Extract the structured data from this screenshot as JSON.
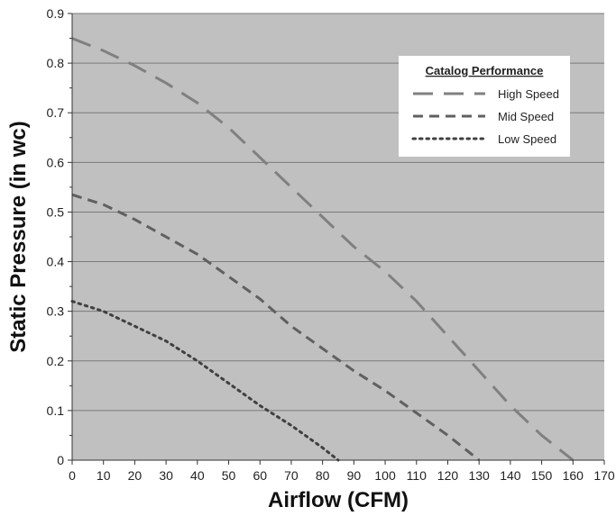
{
  "chart_data": {
    "type": "line",
    "title": "",
    "xlabel": "Airflow (CFM)",
    "ylabel": "Static Pressure (in wc)",
    "xlim": [
      0,
      170
    ],
    "ylim": [
      0,
      0.9
    ],
    "x_ticks": [
      0,
      10,
      20,
      30,
      40,
      50,
      60,
      70,
      80,
      90,
      100,
      110,
      120,
      130,
      140,
      150,
      160,
      170
    ],
    "x_tick_labels": [
      "0",
      "10",
      "20",
      "30",
      "40",
      "50",
      "60",
      "70",
      "80",
      "90",
      "100",
      "110",
      "120",
      "130",
      "140",
      "150",
      "160",
      "170"
    ],
    "y_ticks": [
      0,
      0.1,
      0.2,
      0.3,
      0.4,
      0.5,
      0.6,
      0.7,
      0.8,
      0.9
    ],
    "y_tick_labels": [
      "0",
      "0.1",
      "0.2",
      "0.3",
      "0.4",
      "0.5",
      "0.6",
      "0.7",
      "0.8",
      "0.9"
    ],
    "grid": "horizontal",
    "plot_background": "#c0c0c0",
    "legend": {
      "title": "Catalog Performance",
      "placement": "top-right"
    },
    "series": [
      {
        "name": "High Speed",
        "style": "long-dash",
        "color": "#808080",
        "x": [
          0,
          10,
          20,
          30,
          40,
          50,
          60,
          70,
          80,
          90,
          100,
          110,
          120,
          130,
          140,
          150,
          160
        ],
        "y": [
          0.85,
          0.825,
          0.795,
          0.76,
          0.72,
          0.67,
          0.61,
          0.55,
          0.49,
          0.43,
          0.38,
          0.32,
          0.25,
          0.18,
          0.11,
          0.05,
          0.0
        ]
      },
      {
        "name": "Mid Speed",
        "style": "dash",
        "color": "#606060",
        "x": [
          0,
          10,
          20,
          30,
          40,
          50,
          60,
          70,
          80,
          90,
          100,
          110,
          120,
          130
        ],
        "y": [
          0.535,
          0.515,
          0.485,
          0.45,
          0.415,
          0.37,
          0.325,
          0.27,
          0.225,
          0.18,
          0.14,
          0.095,
          0.05,
          0.0
        ]
      },
      {
        "name": "Low Speed",
        "style": "dotted",
        "color": "#404040",
        "x": [
          0,
          10,
          20,
          30,
          40,
          50,
          60,
          70,
          80,
          85
        ],
        "y": [
          0.32,
          0.3,
          0.27,
          0.24,
          0.2,
          0.155,
          0.11,
          0.07,
          0.025,
          0.0
        ]
      }
    ]
  }
}
